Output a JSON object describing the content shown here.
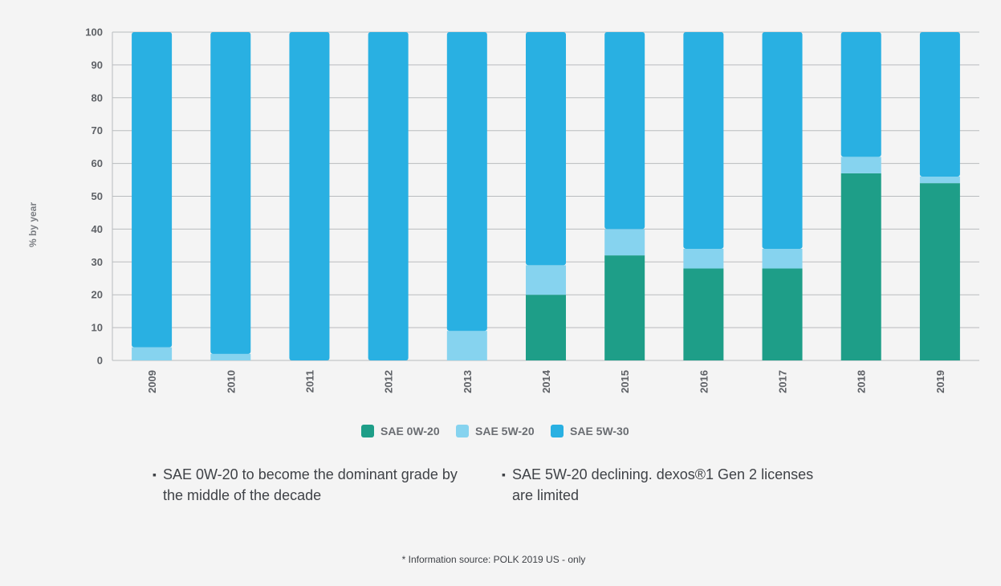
{
  "chart_data": {
    "type": "bar",
    "stacked": true,
    "ylabel": "% by year",
    "ylim": [
      0,
      100
    ],
    "yticks": [
      0,
      10,
      20,
      30,
      40,
      50,
      60,
      70,
      80,
      90,
      100
    ],
    "categories": [
      "2009",
      "2010",
      "2011",
      "2012",
      "2013",
      "2014",
      "2015",
      "2016",
      "2017",
      "2018",
      "2019"
    ],
    "grid": true,
    "legend_position": "bottom",
    "series": [
      {
        "name": "SAE 0W-20",
        "color": "#1e9e88",
        "values": [
          0,
          0,
          0,
          0,
          0,
          20,
          32,
          28,
          28,
          57,
          54
        ]
      },
      {
        "name": "SAE 5W-20",
        "color": "#86d3ef",
        "values": [
          4,
          2,
          0,
          0,
          9,
          9,
          8,
          6,
          6,
          5,
          2
        ]
      },
      {
        "name": "SAE 5W-30",
        "color": "#29b0e2",
        "values": [
          96,
          98,
          100,
          100,
          91,
          71,
          60,
          66,
          66,
          38,
          44
        ]
      }
    ]
  },
  "bullets": [
    "SAE 0W-20 to become the dominant grade by the middle of the decade",
    "SAE 5W-20 declining. dexos®1 Gen 2 licenses are limited"
  ],
  "bullet_mark": "▪",
  "footnote": "* Information source: POLK 2019 US - only"
}
